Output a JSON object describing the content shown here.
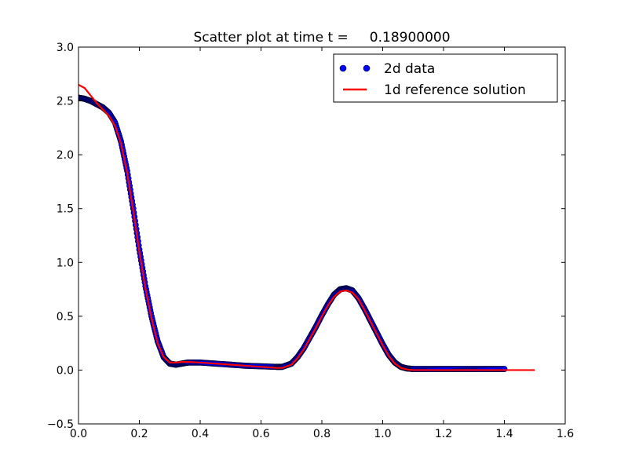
{
  "chart_data": {
    "type": "scatter",
    "title": "Scatter plot at time t =     0.18900000",
    "xlabel": "",
    "ylabel": "",
    "xlim": [
      0.0,
      1.6
    ],
    "ylim": [
      -0.5,
      3.0
    ],
    "xticks": [
      0.0,
      0.2,
      0.4,
      0.6,
      0.8,
      1.0,
      1.2,
      1.4,
      1.6
    ],
    "xtick_labels": [
      "0.0",
      "0.2",
      "0.4",
      "0.6",
      "0.8",
      "1.0",
      "1.2",
      "1.4",
      "1.6"
    ],
    "yticks": [
      -0.5,
      0.0,
      0.5,
      1.0,
      1.5,
      2.0,
      2.5,
      3.0
    ],
    "ytick_labels": [
      "−0.5",
      "0.0",
      "0.5",
      "1.0",
      "1.5",
      "2.0",
      "2.5",
      "3.0"
    ],
    "grid": false,
    "legend_position": "top-right",
    "series": [
      {
        "name": "2d data",
        "kind": "scatter",
        "color": "#0000ff",
        "x": [
          0.0,
          0.02,
          0.04,
          0.06,
          0.08,
          0.1,
          0.12,
          0.14,
          0.16,
          0.18,
          0.2,
          0.22,
          0.24,
          0.26,
          0.28,
          0.3,
          0.32,
          0.34,
          0.36,
          0.4,
          0.45,
          0.5,
          0.55,
          0.6,
          0.65,
          0.67,
          0.7,
          0.72,
          0.74,
          0.76,
          0.78,
          0.8,
          0.82,
          0.84,
          0.86,
          0.88,
          0.9,
          0.92,
          0.94,
          0.96,
          0.98,
          1.0,
          1.02,
          1.04,
          1.06,
          1.08,
          1.1,
          1.15,
          1.2,
          1.25,
          1.3,
          1.35,
          1.4
        ],
        "y": [
          2.53,
          2.52,
          2.5,
          2.47,
          2.44,
          2.39,
          2.3,
          2.12,
          1.85,
          1.5,
          1.12,
          0.78,
          0.5,
          0.27,
          0.12,
          0.06,
          0.05,
          0.06,
          0.07,
          0.07,
          0.06,
          0.05,
          0.04,
          0.035,
          0.03,
          0.03,
          0.06,
          0.12,
          0.2,
          0.3,
          0.4,
          0.51,
          0.61,
          0.7,
          0.75,
          0.76,
          0.74,
          0.67,
          0.57,
          0.46,
          0.35,
          0.24,
          0.14,
          0.07,
          0.03,
          0.015,
          0.01,
          0.01,
          0.01,
          0.01,
          0.01,
          0.01,
          0.01
        ]
      },
      {
        "name": "1d reference solution",
        "kind": "line",
        "color": "#ff0000",
        "x": [
          0.0,
          0.02,
          0.04,
          0.06,
          0.08,
          0.1,
          0.12,
          0.14,
          0.16,
          0.18,
          0.2,
          0.22,
          0.24,
          0.26,
          0.28,
          0.3,
          0.32,
          0.34,
          0.36,
          0.4,
          0.45,
          0.5,
          0.55,
          0.6,
          0.65,
          0.67,
          0.7,
          0.72,
          0.74,
          0.76,
          0.78,
          0.8,
          0.82,
          0.84,
          0.86,
          0.88,
          0.9,
          0.92,
          0.94,
          0.96,
          0.98,
          1.0,
          1.02,
          1.04,
          1.06,
          1.08,
          1.1,
          1.2,
          1.3,
          1.4,
          1.5
        ],
        "y": [
          2.65,
          2.62,
          2.55,
          2.48,
          2.42,
          2.36,
          2.27,
          2.1,
          1.83,
          1.48,
          1.1,
          0.76,
          0.48,
          0.25,
          0.12,
          0.07,
          0.07,
          0.075,
          0.075,
          0.07,
          0.06,
          0.05,
          0.04,
          0.03,
          0.02,
          0.02,
          0.05,
          0.11,
          0.19,
          0.29,
          0.39,
          0.5,
          0.6,
          0.68,
          0.73,
          0.74,
          0.72,
          0.66,
          0.56,
          0.45,
          0.34,
          0.23,
          0.13,
          0.06,
          0.02,
          0.005,
          0.0,
          0.0,
          0.0,
          0.0,
          0.0
        ]
      }
    ]
  }
}
